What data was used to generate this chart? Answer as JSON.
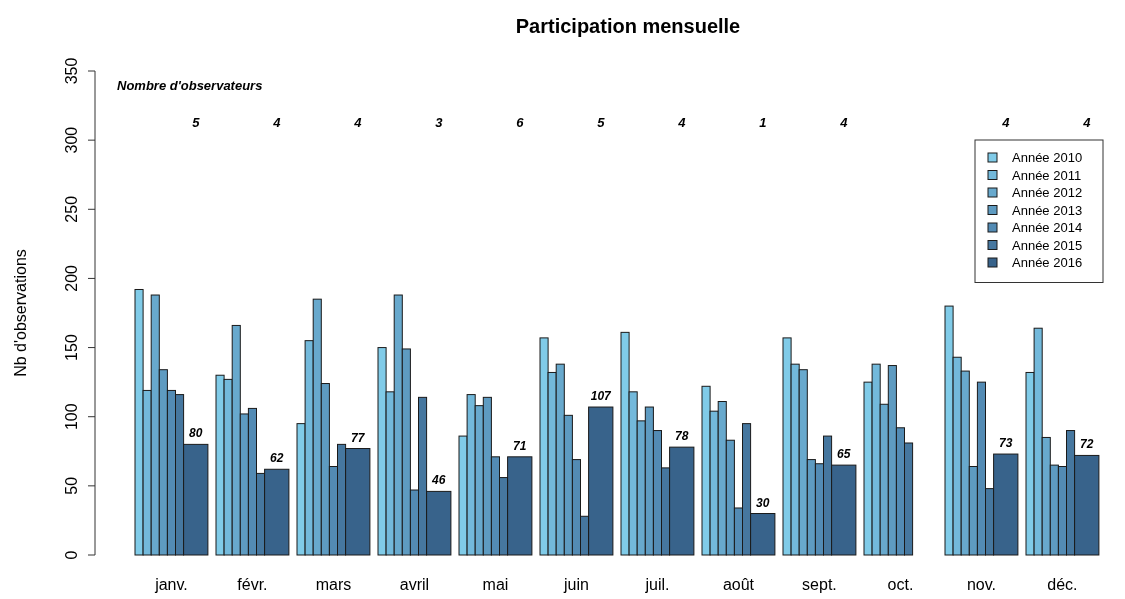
{
  "chart_data": {
    "type": "bar",
    "title": "Participation mensuelle",
    "ylabel": "Nb d'observations",
    "categories": [
      "janv.",
      "févr.",
      "mars",
      "avril",
      "mai",
      "juin",
      "juil.",
      "août",
      "sept.",
      "oct.",
      "nov.",
      "déc."
    ],
    "series": [
      {
        "name": "Année 2010",
        "color": "#80cbe8",
        "values": [
          192,
          130,
          95,
          150,
          86,
          157,
          161,
          122,
          157,
          125,
          180,
          132
        ]
      },
      {
        "name": "Année 2011",
        "color": "#73b9db",
        "values": [
          119,
          127,
          155,
          118,
          116,
          132,
          118,
          104,
          138,
          138,
          143,
          164
        ]
      },
      {
        "name": "Année 2012",
        "color": "#68a9cd",
        "values": [
          188,
          166,
          185,
          188,
          108,
          138,
          97,
          111,
          134,
          109,
          133,
          85
        ]
      },
      {
        "name": "Année 2013",
        "color": "#5e9bc1",
        "values": [
          134,
          102,
          124,
          149,
          114,
          101,
          107,
          83,
          69,
          137,
          64,
          65
        ]
      },
      {
        "name": "Année 2014",
        "color": "#538bb4",
        "values": [
          119,
          106,
          64,
          47,
          71,
          69,
          90,
          34,
          66,
          92,
          125,
          64
        ]
      },
      {
        "name": "Année 2015",
        "color": "#46779f",
        "values": [
          116,
          59,
          80,
          114,
          56,
          28,
          63,
          95,
          86,
          81,
          48,
          90
        ]
      },
      {
        "name": "Année 2016",
        "color": "#38638b",
        "values": [
          80,
          62,
          77,
          46,
          71,
          107,
          78,
          30,
          65,
          null,
          73,
          72
        ],
        "value_labels": [
          "80",
          "62",
          "77",
          "46",
          "71",
          "107",
          "78",
          "30",
          "65",
          null,
          "73",
          "72"
        ]
      }
    ],
    "ylim": [
      0,
      350
    ],
    "yticks": [
      0,
      50,
      100,
      150,
      200,
      250,
      300,
      350
    ],
    "grid": false,
    "legend": "top right",
    "annotations": [
      "Nombre d'observateurs",
      "5",
      "4",
      "4",
      "3",
      "6",
      "5",
      "4",
      "1",
      "4",
      "4",
      "4"
    ]
  }
}
